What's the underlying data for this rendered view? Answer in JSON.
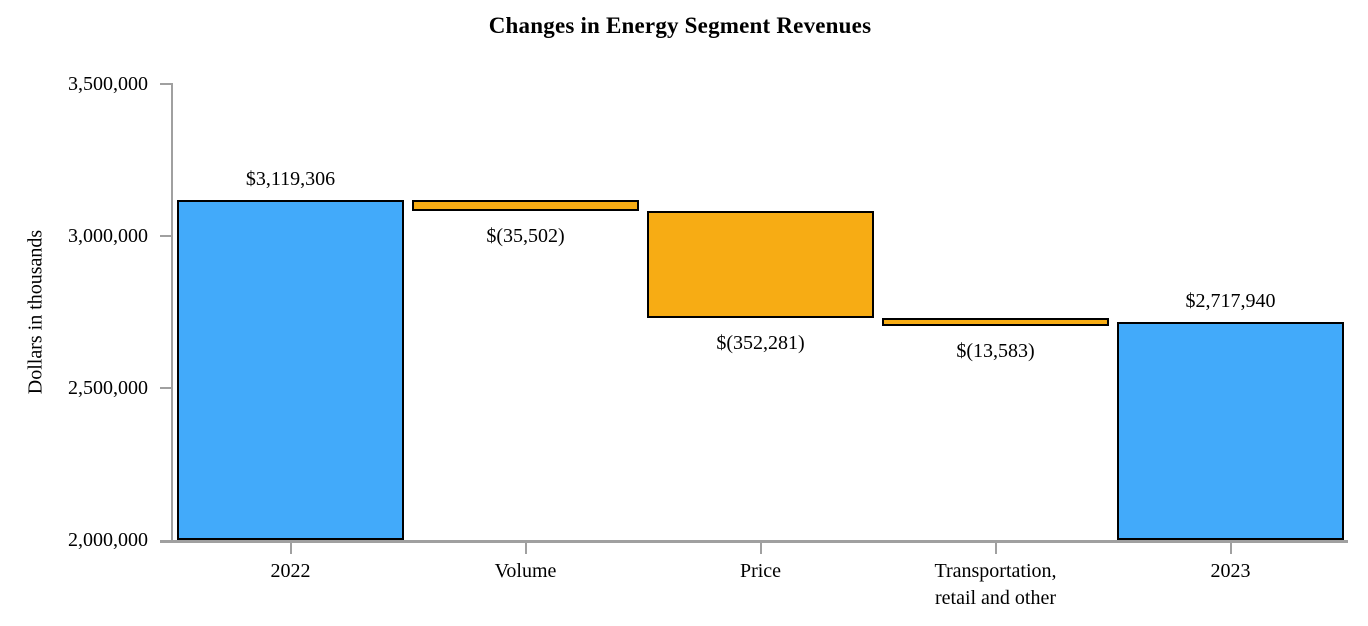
{
  "chart_data": {
    "type": "bar",
    "subtype": "waterfall",
    "title": "Changes in Energy Segment Revenues",
    "xlabel": "",
    "ylabel": "Dollars in thousands",
    "ylim": [
      2000000,
      3500000
    ],
    "yticks": [
      2000000,
      2500000,
      3000000,
      3500000
    ],
    "ytick_labels": [
      "2,000,000",
      "2,500,000",
      "3,000,000",
      "3,500,000"
    ],
    "grid": "off",
    "legend": "none",
    "categories": [
      "2022",
      "Volume",
      "Price",
      "Transportation,\nretail and other",
      "2023"
    ],
    "bars": [
      {
        "key": "2022",
        "category": "2022",
        "from": 2000000,
        "to": 3119306,
        "value": 3119306,
        "label": "$3,119,306",
        "label_position": "above",
        "color_key": "total"
      },
      {
        "key": "volume",
        "category": "Volume",
        "from": 3083804,
        "to": 3119306,
        "value": -35502,
        "label": "$(35,502)",
        "label_position": "below",
        "color_key": "decrease"
      },
      {
        "key": "price",
        "category": "Price",
        "from": 2731523,
        "to": 3083804,
        "value": -352281,
        "label": "$(352,281)",
        "label_position": "below",
        "color_key": "decrease"
      },
      {
        "key": "transportation-retail-other",
        "category": "Transportation, retail and other",
        "from": 2717940,
        "to": 2731523,
        "value": -13583,
        "label": "$(13,583)",
        "label_position": "below",
        "color_key": "decrease"
      },
      {
        "key": "2023",
        "category": "2023",
        "from": 2000000,
        "to": 2717940,
        "value": 2717940,
        "label": "$2,717,940",
        "label_position": "above",
        "color_key": "total"
      }
    ],
    "colors": {
      "total": "#42AAFA",
      "decrease": "#F7AC14",
      "bar_border": "#000000",
      "axis": "#A0A0A0",
      "text": "#000000"
    }
  }
}
